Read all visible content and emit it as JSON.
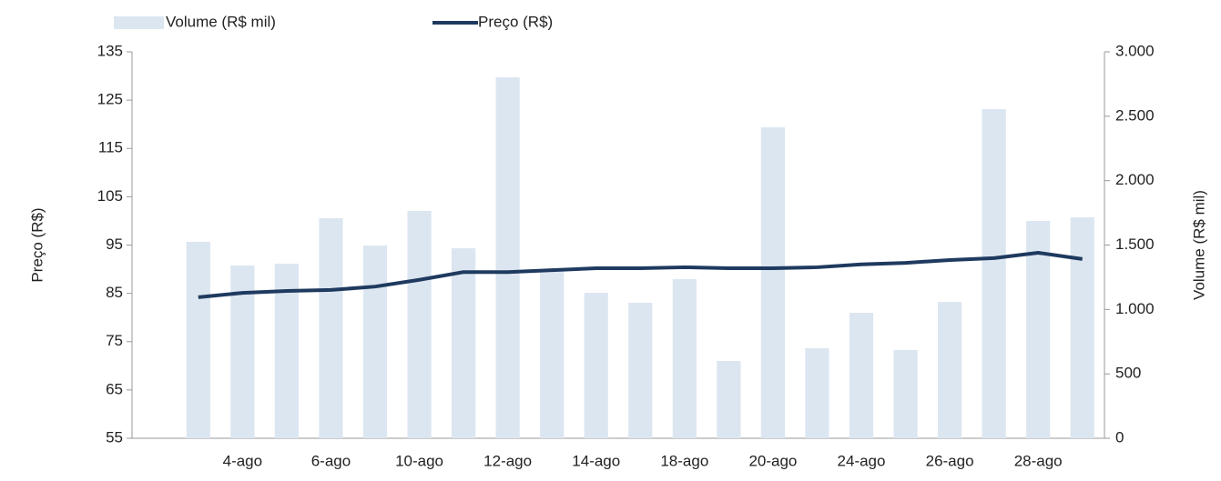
{
  "chart_data": {
    "type": "bar",
    "ylabel": "Preço (R$)",
    "y2label": "Volume (R$ mil)",
    "categories": [
      null,
      null,
      "4-ago",
      null,
      "6-ago",
      null,
      "10-ago",
      null,
      "12-ago",
      null,
      "14-ago",
      null,
      "18-ago",
      null,
      "20-ago",
      null,
      "24-ago",
      null,
      "26-ago",
      null,
      "28-ago",
      null
    ],
    "series": [
      {
        "name": "Volume (R$ mil)",
        "type": "bar",
        "axis": "y2",
        "color": "#dce6f1",
        "values": [
          null,
          1525,
          1341,
          1355,
          1708,
          1496,
          1765,
          1475,
          2802,
          1299,
          1129,
          1052,
          1235,
          600,
          2414,
          699,
          974,
          685,
          1059,
          2555,
          1687,
          1715
        ]
      },
      {
        "name": "Preço (R$)",
        "type": "line",
        "axis": "y",
        "color": "#1f3a5f",
        "values": [
          null,
          84.2,
          85.1,
          85.5,
          85.7,
          86.4,
          87.8,
          89.4,
          89.4,
          89.8,
          90.2,
          90.2,
          90.4,
          90.2,
          90.2,
          90.4,
          91.0,
          91.3,
          91.9,
          92.3,
          93.4,
          92.1
        ]
      }
    ],
    "ylim": [
      55,
      135
    ],
    "yticks": [
      55,
      65,
      75,
      85,
      95,
      105,
      115,
      125,
      135
    ],
    "y2lim": [
      0,
      3000
    ],
    "y2ticks": [
      0,
      500,
      {
        "value": 1000,
        "label": "1.000"
      },
      {
        "value": 1500,
        "label": "1.500"
      },
      {
        "value": 2000,
        "label": "2.000"
      },
      {
        "value": 2500,
        "label": "2.500"
      },
      {
        "value": 3000,
        "label": "3.000"
      }
    ]
  }
}
